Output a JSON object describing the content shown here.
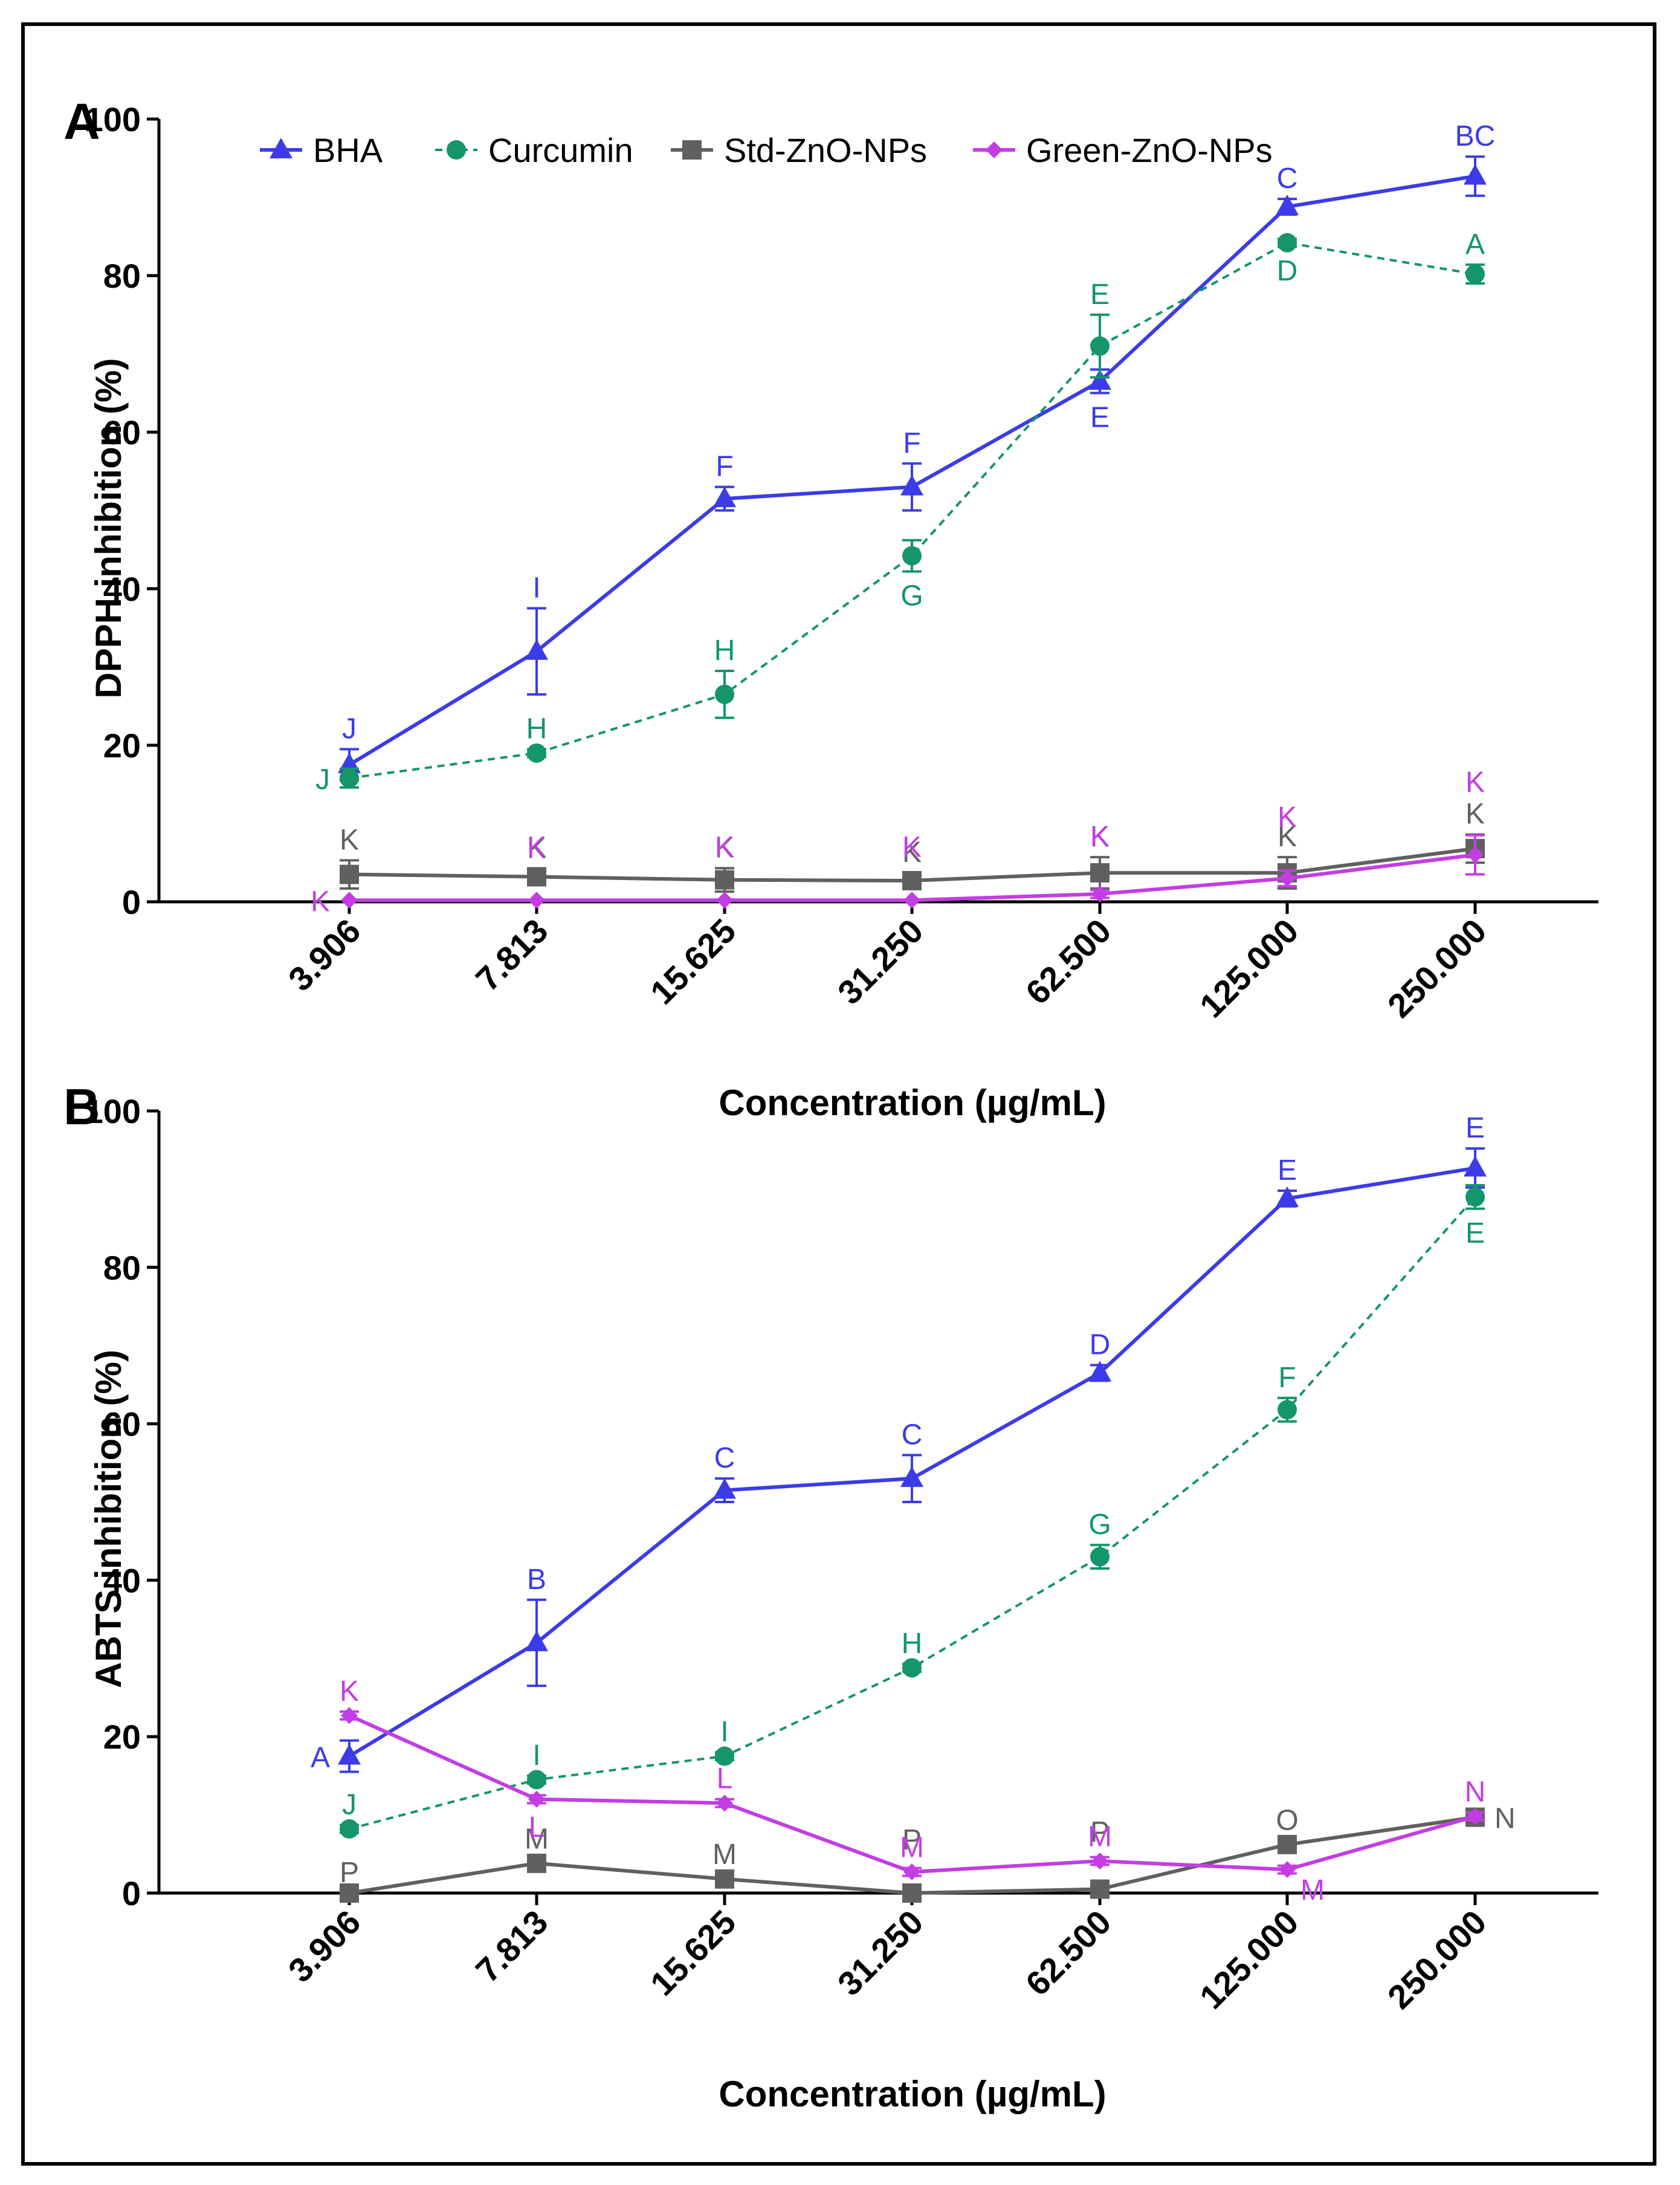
{
  "chart_data": [
    {
      "type": "line",
      "panel_label": "A",
      "ylabel": "DPPH inhibition (%)",
      "xlabel": "Concentration (µg/mL)",
      "categories": [
        "3.906",
        "7.813",
        "15.625",
        "31.250",
        "62.500",
        "125.000",
        "250.000"
      ],
      "ylim": [
        0,
        100
      ],
      "yticks": [
        "0",
        "20",
        "40",
        "60",
        "80",
        "100"
      ],
      "legend_position": "top",
      "series": [
        {
          "name": "BHA",
          "color": "#3b3bea",
          "marker": "triangle",
          "line": "solid",
          "values": [
            17.5,
            32,
            51.5,
            53,
            66.5,
            88.8,
            92.7
          ],
          "errors": [
            2,
            5.5,
            1.5,
            3,
            1.5,
            1,
            2.5
          ],
          "letters": [
            "J",
            "I",
            "F",
            "F",
            "E",
            "C",
            "BC"
          ],
          "letter_side": [
            "above",
            "above",
            "above",
            "above",
            "below",
            "above",
            "above"
          ]
        },
        {
          "name": "Curcumin",
          "color": "#14956a",
          "marker": "circle",
          "line": "dashed",
          "values": [
            15.8,
            19,
            26.5,
            44.2,
            71,
            84.2,
            80.2
          ],
          "errors": [
            1.2,
            0.5,
            3,
            2,
            4,
            0.5,
            1.2
          ],
          "letters": [
            "J",
            "H",
            "H",
            "G",
            "E",
            "D",
            "A"
          ],
          "letter_side": [
            "left",
            "above",
            "above",
            "below",
            "above",
            "below",
            "above"
          ]
        },
        {
          "name": "Std-ZnO-NPs",
          "color": "#606060",
          "marker": "square",
          "line": "solid",
          "values": [
            3.5,
            3.2,
            2.8,
            2.7,
            3.7,
            3.7,
            6.8
          ],
          "errors": [
            1.8,
            1,
            1.5,
            1,
            2,
            2,
            1.8
          ],
          "letters": [
            "K",
            "K",
            "K",
            "K",
            "K",
            "K",
            "K"
          ],
          "letter_side": [
            "above",
            "above",
            "above",
            "above",
            "above",
            "above",
            "above"
          ]
        },
        {
          "name": "Green-ZnO-NPs",
          "color": "#c23ee3",
          "marker": "diamond",
          "line": "solid",
          "values": [
            0.2,
            0.2,
            0.2,
            0.2,
            1,
            3,
            6
          ],
          "errors": [
            0,
            0,
            0,
            0,
            0.5,
            1,
            2.5
          ],
          "letters": [
            "K",
            "K",
            "K",
            "K",
            "K",
            "K",
            "K"
          ],
          "letter_side": [
            "left",
            "high",
            "high",
            "high",
            "high",
            "high",
            "high"
          ]
        }
      ]
    },
    {
      "type": "line",
      "panel_label": "B",
      "ylabel": "ABTS inhibition (%)",
      "xlabel": "Concentration (µg/mL)",
      "categories": [
        "3.906",
        "7.813",
        "15.625",
        "31.250",
        "62.500",
        "125.000",
        "250.000"
      ],
      "ylim": [
        0,
        100
      ],
      "yticks": [
        "0",
        "20",
        "40",
        "60",
        "80",
        "100"
      ],
      "series": [
        {
          "name": "BHA",
          "color": "#3b3bea",
          "marker": "triangle",
          "line": "solid",
          "values": [
            17.5,
            32,
            51.5,
            53,
            66.5,
            88.8,
            92.7
          ],
          "errors": [
            2,
            5.5,
            1.5,
            3,
            1,
            1,
            2.5
          ],
          "letters": [
            "A",
            "B",
            "C",
            "C",
            "D",
            "E",
            "E"
          ],
          "letter_side": [
            "left",
            "above",
            "above",
            "above",
            "above",
            "above",
            "above"
          ]
        },
        {
          "name": "Curcumin",
          "color": "#14956a",
          "marker": "circle",
          "line": "dashed",
          "values": [
            8.2,
            14.5,
            17.5,
            28.8,
            43,
            61.8,
            89
          ],
          "errors": [
            0.5,
            0.5,
            0.5,
            0.5,
            1.5,
            1.5,
            1.5
          ],
          "letters": [
            "J",
            "I",
            "I",
            "H",
            "G",
            "F",
            "E"
          ],
          "letter_side": [
            "above",
            "above",
            "above",
            "above",
            "above",
            "above",
            "below"
          ]
        },
        {
          "name": "Std-ZnO-NPs",
          "color": "#606060",
          "marker": "square",
          "line": "solid",
          "values": [
            0,
            3.8,
            1.8,
            0,
            0.5,
            6.2,
            9.7
          ],
          "errors": [
            0,
            0.5,
            0.5,
            0,
            0.5,
            0.5,
            0.5
          ],
          "letters": [
            "P",
            "M",
            "M",
            "P",
            "P",
            "O",
            "N"
          ],
          "letter_side": [
            "above",
            "above",
            "above",
            "high",
            "high",
            "above",
            "right"
          ]
        },
        {
          "name": "Green-ZnO-NPs",
          "color": "#c23ee3",
          "marker": "diamond",
          "line": "solid",
          "values": [
            22.7,
            12,
            11.5,
            2.7,
            4.1,
            3,
            9.8
          ],
          "errors": [
            0.5,
            0.5,
            0.5,
            0.5,
            0.5,
            0.5,
            0.5
          ],
          "letters": [
            "K",
            "L",
            "L",
            "M",
            "M",
            "M",
            "N"
          ],
          "letter_side": [
            "above",
            "below",
            "above",
            "above",
            "above",
            "lowright",
            "above"
          ]
        }
      ]
    }
  ]
}
